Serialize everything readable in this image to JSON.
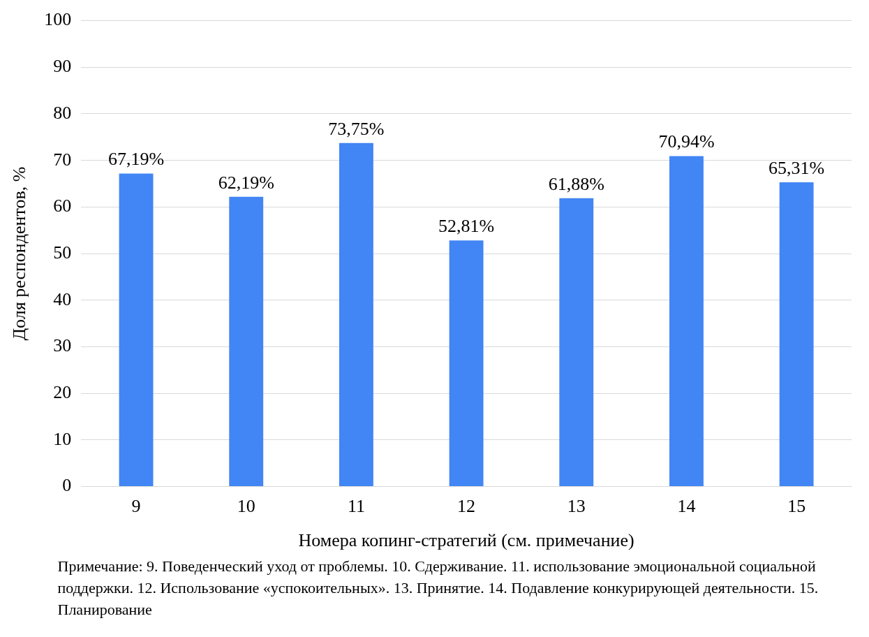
{
  "chart_data": {
    "type": "bar",
    "xlabel": "Номера копинг-стратегий (см. примечание)",
    "ylabel": "Доля респондентов, %",
    "categories": [
      "9",
      "10",
      "11",
      "12",
      "13",
      "14",
      "15"
    ],
    "values": [
      67.19,
      62.19,
      73.75,
      52.81,
      61.88,
      70.94,
      65.31
    ],
    "value_labels": [
      "67,19%",
      "62,19%",
      "73,75%",
      "52,81%",
      "61,88%",
      "70,94%",
      "65,31%"
    ],
    "color": "#4285f4",
    "ylim": [
      0,
      100
    ],
    "yticks": [
      0,
      10,
      20,
      30,
      40,
      50,
      60,
      70,
      80,
      90,
      100
    ],
    "grid": "y",
    "legend": false,
    "annotations": [
      "Примечание: 9. Поведенческий уход от проблемы. 10. Сдерживание. 11. использование эмоциональной социальной поддержки. 12. Использование «успокоительных». 13. Принятие. 14. Подавление конкурирующей деятельности. 15. Планирование"
    ]
  }
}
